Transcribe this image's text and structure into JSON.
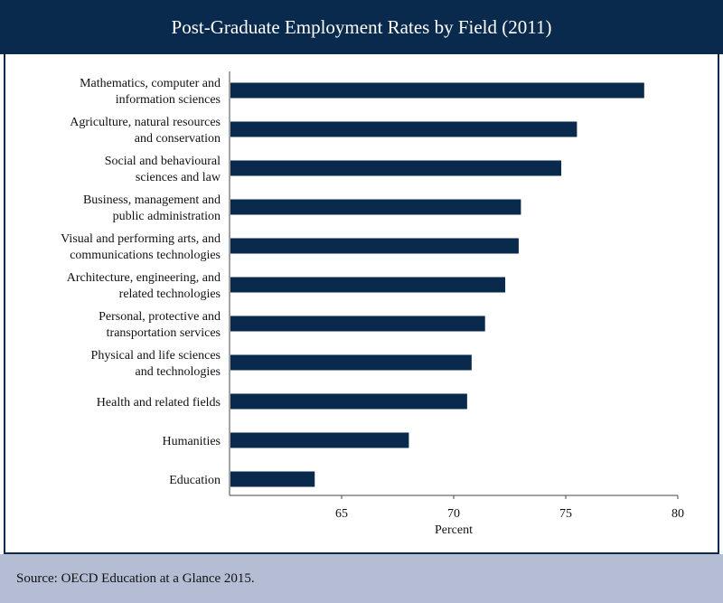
{
  "chart_data": {
    "type": "bar",
    "orientation": "horizontal",
    "title": "Post-Graduate Employment Rates by Field (2011)",
    "xlabel": "Percent",
    "ylabel": "",
    "xlim": [
      60,
      80
    ],
    "xticks": [
      65,
      70,
      75,
      80
    ],
    "grid": false,
    "categories": [
      [
        "Mathematics, computer and",
        "information sciences"
      ],
      [
        "Agriculture, natural resources",
        "and conservation"
      ],
      [
        "Social and behavioural",
        "sciences and law"
      ],
      [
        "Business, management and",
        "public administration"
      ],
      [
        "Visual and performing arts, and",
        "communications technologies"
      ],
      [
        "Architecture, engineering, and",
        "related technologies"
      ],
      [
        "Personal, protective and",
        "transportation services"
      ],
      [
        "Physical and life sciences",
        "and technologies"
      ],
      [
        "Health and related fields"
      ],
      [
        "Humanities"
      ],
      [
        "Education"
      ]
    ],
    "values": [
      78.5,
      75.5,
      74.8,
      73.0,
      72.9,
      72.3,
      71.4,
      70.8,
      70.6,
      68.0,
      63.8
    ],
    "bar_color": "#0a2a4d",
    "source": "Source: OECD Education at a Glance 2015."
  }
}
